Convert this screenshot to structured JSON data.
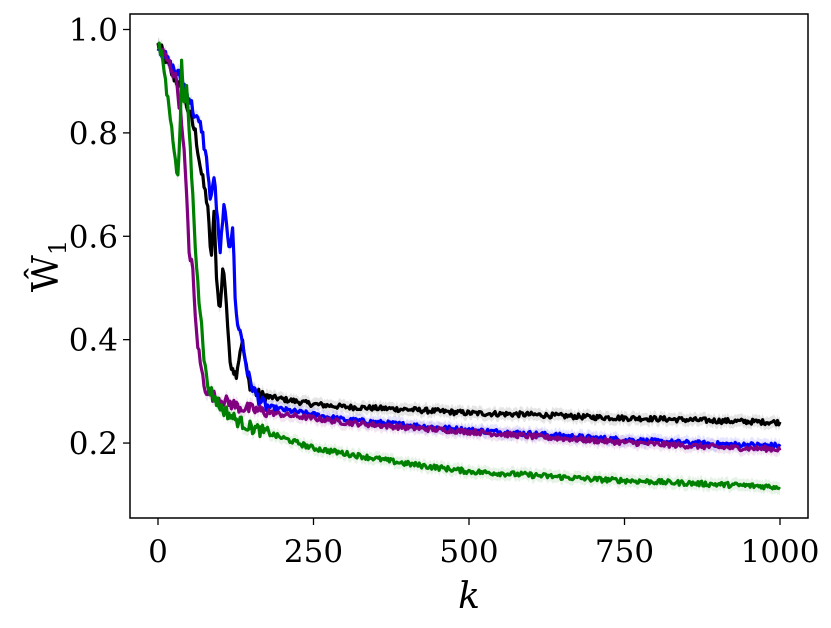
{
  "chart_data": {
    "type": "line",
    "title": "",
    "xlabel": "k",
    "ylabel": "Ŵ",
    "ylabel_subscript": "1",
    "xlim": [
      -45,
      1045
    ],
    "ylim": [
      0.055,
      1.03
    ],
    "xticks": [
      0,
      250,
      500,
      750,
      1000
    ],
    "xtick_labels": [
      "0",
      "250",
      "500",
      "750",
      "1000"
    ],
    "yticks": [
      0.2,
      0.4,
      0.6,
      0.8,
      1.0
    ],
    "ytick_labels": [
      "0.2",
      "0.4",
      "0.6",
      "0.8",
      "1.0"
    ],
    "grid": false,
    "legend": "none",
    "series": [
      {
        "color": "#000000",
        "x": [
          0,
          10,
          20,
          35,
          50,
          60,
          70,
          80,
          85,
          90,
          95,
          100,
          105,
          110,
          115,
          120,
          125,
          135,
          145,
          155,
          165,
          175,
          200,
          250,
          300,
          400,
          500,
          600,
          700,
          800,
          900,
          1000
        ],
        "y": [
          0.97,
          0.95,
          0.92,
          0.89,
          0.84,
          0.8,
          0.72,
          0.66,
          0.55,
          0.64,
          0.5,
          0.46,
          0.55,
          0.47,
          0.36,
          0.35,
          0.33,
          0.4,
          0.32,
          0.3,
          0.29,
          0.29,
          0.285,
          0.275,
          0.27,
          0.265,
          0.258,
          0.255,
          0.25,
          0.247,
          0.243,
          0.24
        ]
      },
      {
        "color": "#0000ff",
        "x": [
          0,
          10,
          20,
          35,
          50,
          60,
          70,
          80,
          85,
          90,
          95,
          100,
          105,
          110,
          115,
          120,
          125,
          135,
          145,
          155,
          165,
          175,
          200,
          250,
          300,
          400,
          500,
          600,
          700,
          800,
          900,
          1000
        ],
        "y": [
          0.97,
          0.95,
          0.93,
          0.91,
          0.87,
          0.83,
          0.81,
          0.73,
          0.66,
          0.72,
          0.64,
          0.56,
          0.66,
          0.62,
          0.58,
          0.62,
          0.45,
          0.4,
          0.33,
          0.3,
          0.28,
          0.27,
          0.265,
          0.255,
          0.245,
          0.235,
          0.225,
          0.218,
          0.21,
          0.203,
          0.198,
          0.195
        ]
      },
      {
        "color": "#800080",
        "x": [
          0,
          10,
          20,
          30,
          40,
          45,
          50,
          55,
          60,
          65,
          70,
          75,
          80,
          90,
          100,
          110,
          120,
          130,
          150,
          175,
          200,
          250,
          300,
          400,
          500,
          600,
          700,
          800,
          900,
          1000
        ],
        "y": [
          0.97,
          0.95,
          0.93,
          0.9,
          0.8,
          0.7,
          0.57,
          0.55,
          0.44,
          0.38,
          0.34,
          0.31,
          0.3,
          0.29,
          0.285,
          0.28,
          0.275,
          0.27,
          0.265,
          0.26,
          0.255,
          0.248,
          0.24,
          0.23,
          0.222,
          0.213,
          0.205,
          0.198,
          0.192,
          0.188
        ]
      },
      {
        "color": "#008000",
        "x": [
          0,
          8,
          15,
          22,
          28,
          32,
          35,
          38,
          42,
          46,
          50,
          55,
          60,
          65,
          70,
          75,
          80,
          90,
          100,
          110,
          125,
          150,
          200,
          250,
          300,
          400,
          500,
          600,
          700,
          800,
          900,
          1000
        ],
        "y": [
          0.97,
          0.94,
          0.87,
          0.82,
          0.74,
          0.72,
          0.77,
          0.95,
          0.85,
          0.88,
          0.81,
          0.7,
          0.58,
          0.49,
          0.44,
          0.35,
          0.31,
          0.29,
          0.27,
          0.26,
          0.245,
          0.23,
          0.21,
          0.19,
          0.18,
          0.16,
          0.145,
          0.138,
          0.13,
          0.125,
          0.12,
          0.115
        ]
      }
    ]
  }
}
